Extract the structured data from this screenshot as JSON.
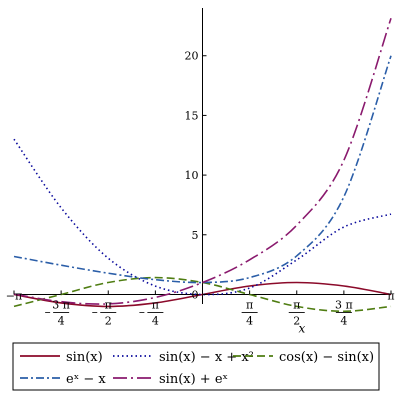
{
  "chart_data": {
    "type": "line",
    "xlabel": "x",
    "ylabel": "",
    "xlim": [
      -3.14159,
      3.14159
    ],
    "ylim": [
      -0.8,
      24
    ],
    "x_tick_labels": [
      {
        "value": -3.14159,
        "num": "−π",
        "den": ""
      },
      {
        "value": -2.35619,
        "num": "3 π",
        "den": "4",
        "neg": true
      },
      {
        "value": -1.5708,
        "num": "π",
        "den": "2",
        "neg": true
      },
      {
        "value": -0.7854,
        "num": "π",
        "den": "4",
        "neg": true
      },
      {
        "value": 0.7854,
        "num": "π",
        "den": "4"
      },
      {
        "value": 1.5708,
        "num": "π",
        "den": "2"
      },
      {
        "value": 2.35619,
        "num": "3 π",
        "den": "4"
      },
      {
        "value": 3.14159,
        "num": "π",
        "den": ""
      }
    ],
    "y_ticks": [
      0,
      5,
      10,
      15,
      20
    ],
    "x_samples": [
      -3.14159,
      -2.35619,
      -1.5708,
      -0.7854,
      0,
      0.7854,
      1.5708,
      2.35619,
      3.14159
    ],
    "series": [
      {
        "name": "sin(x)",
        "color": "#8b0a2a",
        "dash": "solid",
        "values": [
          0,
          -0.707,
          -1,
          -0.707,
          0,
          0.707,
          1,
          0.707,
          0
        ]
      },
      {
        "name": "sin(x) − x + x²",
        "color": "#0a0a9c",
        "dash": "dotted",
        "values": [
          13.01,
          7.26,
          3.04,
          0.7,
          0,
          0.54,
          2.9,
          5.65,
          6.73
        ]
      },
      {
        "name": "cos(x) − sin(x)",
        "color": "#4f7d12",
        "dash": "dash",
        "values": [
          -1,
          -0.0,
          1,
          1.414,
          1,
          0,
          -1,
          -1.414,
          -1
        ]
      },
      {
        "name": "eˣ − x",
        "color": "#2b5ea8",
        "dash": "dashdot",
        "values": [
          3.18,
          2.45,
          1.78,
          1.24,
          1,
          1.41,
          3.24,
          8.19,
          20.0
        ]
      },
      {
        "name": "sin(x) + eˣ",
        "color": "#8a1a6e",
        "dash": "longdash",
        "values": [
          0.04,
          -0.61,
          -0.79,
          -0.25,
          1,
          2.9,
          5.81,
          11.25,
          23.14
        ]
      }
    ],
    "legend_position": "bottom",
    "legend": [
      {
        "label": "sin(x)",
        "series": 0
      },
      {
        "label": "sin(x) − x + x²",
        "series": 1
      },
      {
        "label": "cos(x) − sin(x)",
        "series": 2
      },
      {
        "label": "eˣ − x",
        "series": 3
      },
      {
        "label": "sin(x) + eˣ",
        "series": 4
      }
    ]
  }
}
